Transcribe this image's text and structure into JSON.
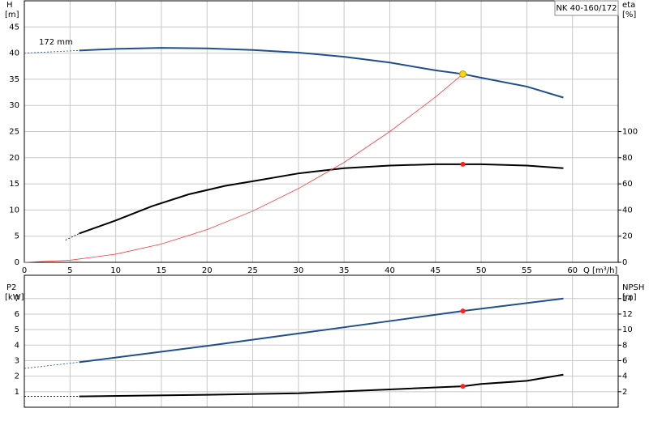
{
  "chart_data": [
    {
      "type": "line",
      "title": "NK 40-160/172",
      "ylabel": "H",
      "yunit": "[m]",
      "y2label": "eta",
      "y2unit": "[%]",
      "xlabel": "Q [m³/h]",
      "annotation": "172 mm",
      "xlim": [
        0,
        65
      ],
      "xticks": [
        0,
        5,
        10,
        15,
        20,
        25,
        30,
        35,
        40,
        45,
        50,
        55,
        60
      ],
      "ylim": [
        0,
        50
      ],
      "yticks": [
        0,
        5,
        10,
        15,
        20,
        25,
        30,
        35,
        40,
        45
      ],
      "y2lim": [
        0,
        200
      ],
      "y2ticks": [
        0,
        20,
        40,
        60,
        80,
        100
      ],
      "grid": true,
      "series": [
        {
          "color": "#1f4f8f",
          "line_style": "dashed",
          "axis": "y",
          "x": [
            0,
            6
          ],
          "values": [
            40,
            40.5
          ]
        },
        {
          "color": "#1f4f8f",
          "line_style": "solid",
          "axis": "y",
          "x": [
            6,
            10,
            15,
            20,
            25,
            30,
            35,
            40,
            45,
            48,
            50,
            55,
            59
          ],
          "values": [
            40.5,
            40.8,
            41,
            40.9,
            40.6,
            40.1,
            39.3,
            38.2,
            36.7,
            36,
            35.3,
            33.6,
            31.5
          ]
        },
        {
          "color": "#000000",
          "line_style": "dashed",
          "axis": "y2",
          "x": [
            4.5,
            6
          ],
          "values": [
            17,
            22
          ]
        },
        {
          "color": "#000000",
          "line_style": "solid",
          "axis": "y2",
          "x": [
            6,
            10,
            14,
            18,
            22,
            25,
            30,
            35,
            40,
            45,
            48,
            50,
            55,
            59
          ],
          "values": [
            22,
            32,
            43,
            52,
            58.5,
            62,
            68,
            72,
            74,
            75,
            75,
            75,
            74,
            72
          ]
        },
        {
          "color": "#ff3b3b",
          "line_style": "thin",
          "axis": "y",
          "x": [
            0,
            5,
            10,
            15,
            20,
            25,
            30,
            35,
            40,
            45,
            48
          ],
          "values": [
            0,
            0.4,
            1.56,
            3.5,
            6.25,
            9.8,
            14.1,
            19.1,
            25,
            31.6,
            36
          ]
        },
        {
          "color": "#f5d90a",
          "line_style": "marker",
          "axis": "y",
          "x": [
            48
          ],
          "values": [
            36
          ]
        },
        {
          "color": "#ff2020",
          "line_style": "marker",
          "axis": "y2",
          "x": [
            48
          ],
          "values": [
            75
          ]
        }
      ]
    },
    {
      "type": "line",
      "ylabel": "P2",
      "yunit": "[kW]",
      "y2label": "NPSH",
      "y2unit": "[m]",
      "xlim": [
        0,
        65
      ],
      "ylim": [
        0,
        8.5
      ],
      "yticks": [
        1,
        2,
        3,
        4,
        5,
        6,
        7
      ],
      "y2lim": [
        0,
        17
      ],
      "y2ticks": [
        2,
        4,
        6,
        8,
        10,
        12,
        14
      ],
      "grid": true,
      "series": [
        {
          "color": "#1f4f8f",
          "line_style": "dashed",
          "axis": "y",
          "x": [
            0,
            6
          ],
          "values": [
            2.5,
            2.9
          ]
        },
        {
          "color": "#1f4f8f",
          "line_style": "solid",
          "axis": "y",
          "x": [
            6,
            10,
            20,
            30,
            40,
            48,
            59
          ],
          "values": [
            2.9,
            3.2,
            3.95,
            4.75,
            5.55,
            6.2,
            7.0
          ]
        },
        {
          "color": "#000000",
          "line_style": "dashed",
          "axis": "y2",
          "x": [
            0,
            6
          ],
          "values": [
            1.4,
            1.4
          ]
        },
        {
          "color": "#000000",
          "line_style": "solid",
          "axis": "y2",
          "x": [
            6,
            20,
            30,
            40,
            48,
            50,
            55,
            59
          ],
          "values": [
            1.4,
            1.6,
            1.8,
            2.3,
            2.7,
            3.0,
            3.4,
            4.2
          ]
        },
        {
          "color": "#ff2020",
          "line_style": "marker",
          "axis": "y",
          "x": [
            48
          ],
          "values": [
            6.2
          ]
        },
        {
          "color": "#ff2020",
          "line_style": "marker",
          "axis": "y2",
          "x": [
            48
          ],
          "values": [
            2.7
          ]
        }
      ]
    }
  ]
}
